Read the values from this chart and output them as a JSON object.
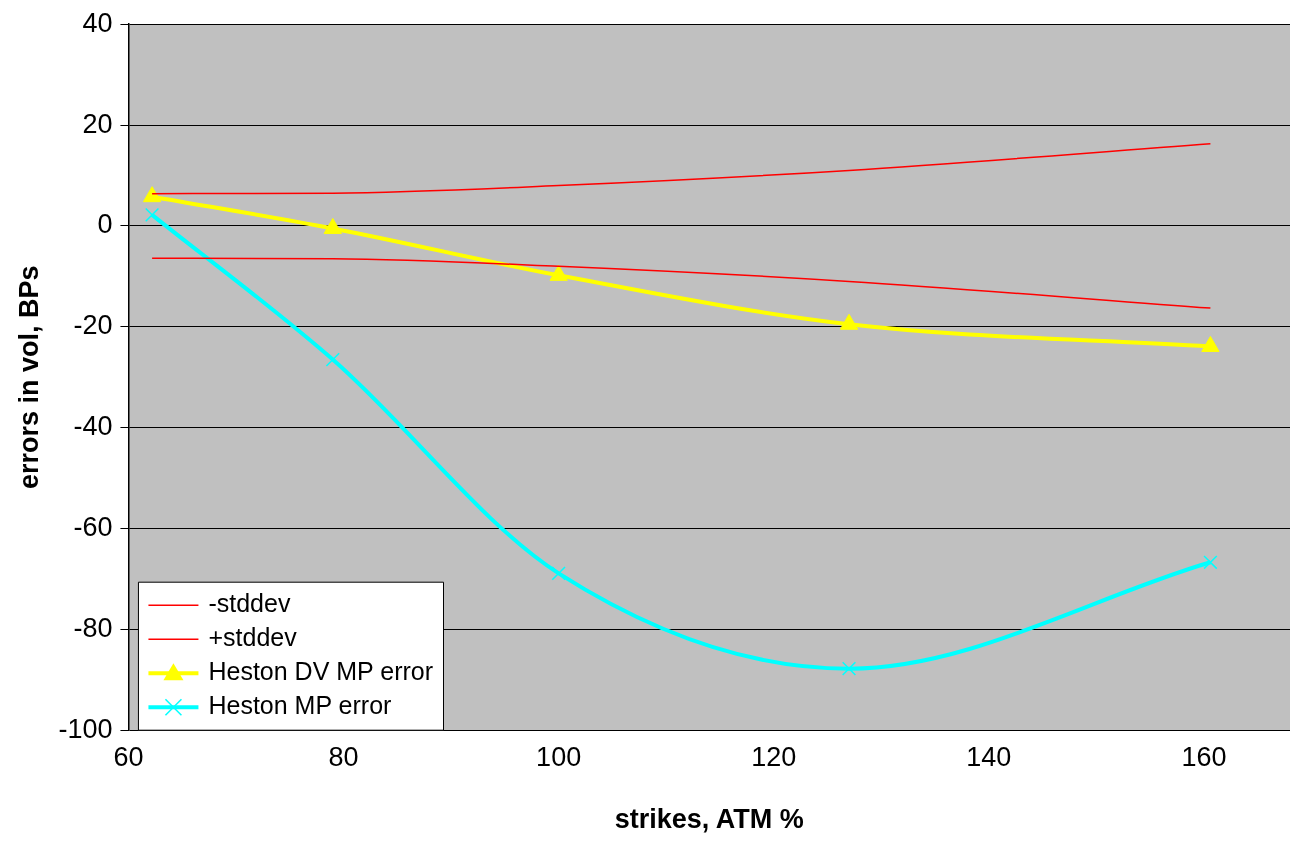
{
  "chart_data": {
    "type": "line",
    "xlabel": "strikes, ATM %",
    "ylabel": "errors in vol, BPs",
    "x": [
      62.2,
      79,
      100,
      127,
      160.6
    ],
    "series": [
      {
        "name": "-stddev",
        "color": "#ff0000",
        "values": [
          -6.4,
          -6.5,
          -8,
          -11,
          -16.3
        ],
        "marker": "none"
      },
      {
        "name": "+stddev",
        "color": "#ff0000",
        "values": [
          6.4,
          6.5,
          8,
          11,
          16.3
        ],
        "marker": "none"
      },
      {
        "name": "Heston DV MP error",
        "color": "#ffff00",
        "values": [
          5.8,
          -0.5,
          -9.8,
          -19.5,
          -23.9
        ],
        "marker": "triangle"
      },
      {
        "name": "Heston MP error",
        "color": "#00ffff",
        "values": [
          2.2,
          -26.5,
          -68.9,
          -87.8,
          -66.7
        ],
        "marker": "cross"
      }
    ],
    "xlim": [
      60,
      168
    ],
    "xticks": [
      60,
      80,
      100,
      120,
      140,
      160
    ],
    "ylim": [
      -100,
      40
    ],
    "yticks": [
      -100,
      -80,
      -60,
      -40,
      -20,
      0,
      20,
      40
    ],
    "grid": "y",
    "legend": "bottom left"
  }
}
